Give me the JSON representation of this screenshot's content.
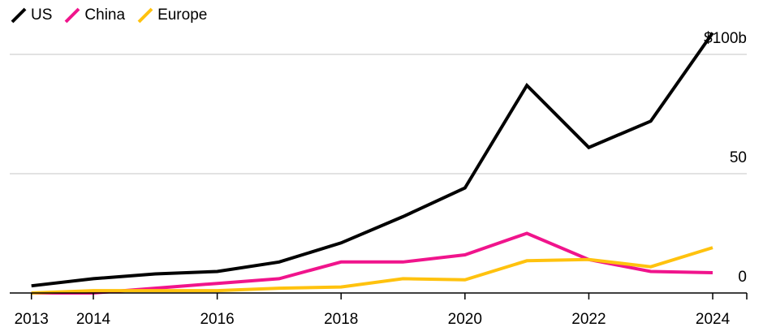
{
  "chart_data": {
    "type": "line",
    "title": "",
    "xlabel": "",
    "ylabel": "",
    "x": [
      2013,
      2014,
      2015,
      2016,
      2017,
      2018,
      2019,
      2020,
      2021,
      2022,
      2023,
      2024
    ],
    "series": [
      {
        "name": "US",
        "color": "#000000",
        "values": [
          3,
          6,
          8,
          9,
          13,
          21,
          32,
          44,
          87,
          61,
          72,
          109
        ]
      },
      {
        "name": "China",
        "color": "#f0148c",
        "values": [
          0,
          0,
          2,
          4,
          6,
          13,
          13,
          16,
          25,
          14,
          9,
          8.5
        ]
      },
      {
        "name": "Europe",
        "color": "#ffc20e",
        "values": [
          0,
          1,
          1,
          1,
          2,
          2.5,
          6,
          5.5,
          13.5,
          14,
          11,
          19
        ]
      }
    ],
    "x_ticks": [
      2013,
      2014,
      2016,
      2018,
      2020,
      2022,
      2024
    ],
    "x_tick_labels": [
      "2013",
      "2014",
      "2016",
      "2018",
      "2020",
      "2022",
      "2024"
    ],
    "xlim": [
      2012.65,
      2024.55
    ],
    "y_ticks": [
      0,
      50,
      100
    ],
    "y_tick_labels": [
      "0",
      "50",
      "$100b"
    ],
    "ylim": [
      0,
      111
    ],
    "grid": "horizontal",
    "legend_position": "top-left"
  }
}
